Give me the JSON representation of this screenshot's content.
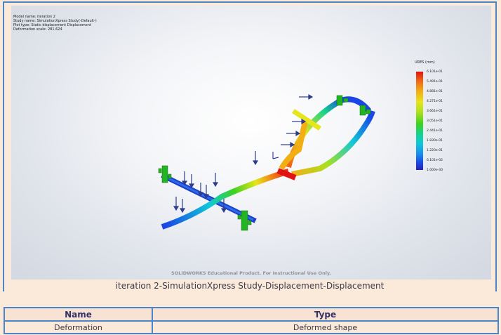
{
  "plot_info": {
    "model_name": "Model name: iteration 2",
    "study_name": "Study name: SimulationXpress Study(-Default-)",
    "plot_type": "Plot type: Static displacement Displacement",
    "deformation_scale": "Deformation scale: 281.624"
  },
  "legend": {
    "title": "URES (mm)",
    "ticks": [
      "6.101e-01",
      "5.491e-01",
      "4.881e-01",
      "4.271e-01",
      "3.661e-01",
      "3.051e-01",
      "2.441e-01",
      "1.830e-01",
      "1.220e-01",
      "6.101e-02",
      "1.000e-30"
    ],
    "colors": [
      "#e11212",
      "#f06414",
      "#f3ae14",
      "#e7e51c",
      "#a8e01e",
      "#3ed21e",
      "#14d28c",
      "#10c8d8",
      "#1a8cf0",
      "#1a46e6",
      "#2424b0"
    ]
  },
  "watermark": "SOLIDWORKS Educational Product. For Instructional Use Only.",
  "caption": "iteration 2-SimulationXpress Study-Displacement-Displacement",
  "table": {
    "headers": [
      "Name",
      "Type"
    ],
    "rows": [
      [
        "Deformation",
        "Deformed shape"
      ]
    ]
  }
}
